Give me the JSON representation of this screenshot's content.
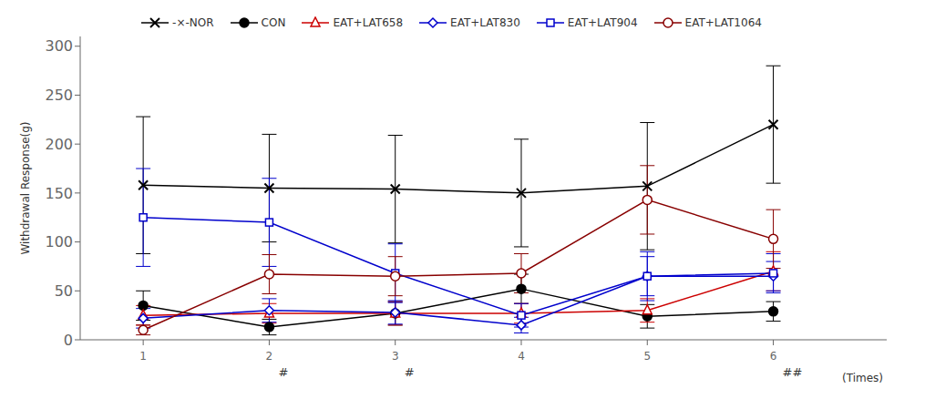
{
  "chart_data": {
    "type": "line",
    "x": [
      1,
      2,
      3,
      4,
      5,
      6
    ],
    "xlabel": "(Times)",
    "ylabel": "Withdrawal Response(g)",
    "xlim": [
      0.5,
      6.9
    ],
    "ylim": [
      0,
      310
    ],
    "xticks": [
      1,
      2,
      3,
      4,
      5,
      6
    ],
    "yticks": [
      0,
      50,
      100,
      150,
      200,
      250,
      300
    ],
    "grid": false,
    "legend": "top",
    "series": [
      {
        "name": "-×-NOR",
        "color": "#000000",
        "marker": "x",
        "line_style": "solid",
        "values": [
          158,
          155,
          154,
          150,
          157,
          220
        ],
        "yerr": [
          70,
          55,
          55,
          55,
          65,
          60
        ]
      },
      {
        "name": "CON",
        "color": "#000000",
        "marker": "filled_circle",
        "line_style": "solid",
        "values": [
          35,
          13,
          27,
          52,
          24,
          29
        ],
        "yerr": [
          15,
          8,
          12,
          15,
          12,
          10
        ]
      },
      {
        "name": "EAT+LAT658",
        "color": "#cc0000",
        "marker": "triangle",
        "line_style": "solid",
        "values": [
          25,
          27,
          27,
          27,
          30,
          70
        ],
        "yerr": [
          10,
          10,
          12,
          10,
          12,
          20
        ]
      },
      {
        "name": "EAT+LAT830",
        "color": "#0000cc",
        "marker": "diamond",
        "line_style": "solid",
        "values": [
          22,
          30,
          28,
          15,
          65,
          65
        ],
        "yerr": [
          10,
          12,
          12,
          8,
          20,
          15
        ]
      },
      {
        "name": "EAT+LAT904",
        "color": "#0000cc",
        "marker": "square",
        "line_style": "solid",
        "values": [
          125,
          120,
          68,
          25,
          65,
          68
        ],
        "yerr": [
          50,
          45,
          30,
          12,
          25,
          20
        ]
      },
      {
        "name": "EAT+LAT1064",
        "color": "#880000",
        "marker": "circle",
        "line_style": "solid",
        "values": [
          10,
          67,
          65,
          68,
          143,
          103
        ],
        "yerr": [
          5,
          20,
          20,
          20,
          35,
          30
        ]
      }
    ],
    "annotations": [
      {
        "x": 2,
        "text": "#"
      },
      {
        "x": 3,
        "text": "#"
      },
      {
        "x": 6,
        "text": "##"
      }
    ]
  }
}
